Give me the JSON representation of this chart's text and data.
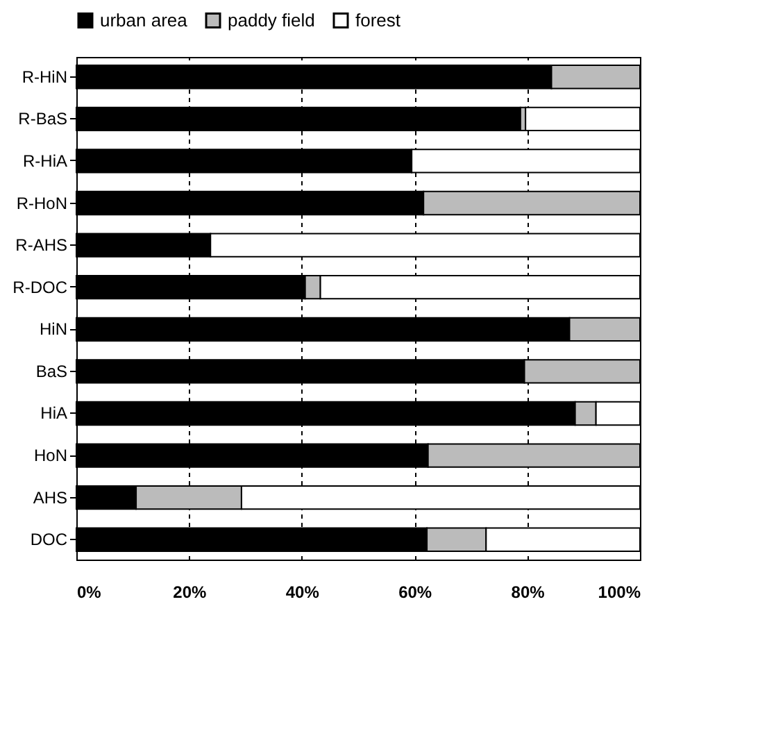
{
  "chart_data": {
    "type": "bar",
    "orientation": "horizontal",
    "stacked": true,
    "categories": [
      "R-HiN",
      "R-BaS",
      "R-HiA",
      "R-HoN",
      "R-AHS",
      "R-DOC",
      "HiN",
      "BaS",
      "HiA",
      "HoN",
      "AHS",
      "DOC"
    ],
    "series": [
      {
        "name": "urban area",
        "color": "#000000",
        "values": [
          84.3,
          78.8,
          59.5,
          61.6,
          23.8,
          40.6,
          87.5,
          79.5,
          88.5,
          62.4,
          10.6,
          62.2
        ]
      },
      {
        "name": "paddy field",
        "color": "#bbbbbb",
        "values": [
          15.7,
          0.9,
          0,
          38.4,
          0,
          2.7,
          12.5,
          20.5,
          3.7,
          37.6,
          18.7,
          10.5
        ]
      },
      {
        "name": "forest",
        "color": "#ffffff",
        "values": [
          0,
          20.3,
          40.5,
          0,
          76.2,
          56.7,
          0,
          0,
          7.8,
          0,
          70.7,
          27.3
        ]
      }
    ],
    "xlim": [
      0,
      100
    ],
    "xticks": [
      {
        "value": 0,
        "label": "0%"
      },
      {
        "value": 20,
        "label": "20%"
      },
      {
        "value": 40,
        "label": "40%"
      },
      {
        "value": 60,
        "label": "60%"
      },
      {
        "value": 80,
        "label": "80%"
      },
      {
        "value": 100,
        "label": "100%"
      }
    ],
    "grid": "x",
    "legend": "top"
  }
}
